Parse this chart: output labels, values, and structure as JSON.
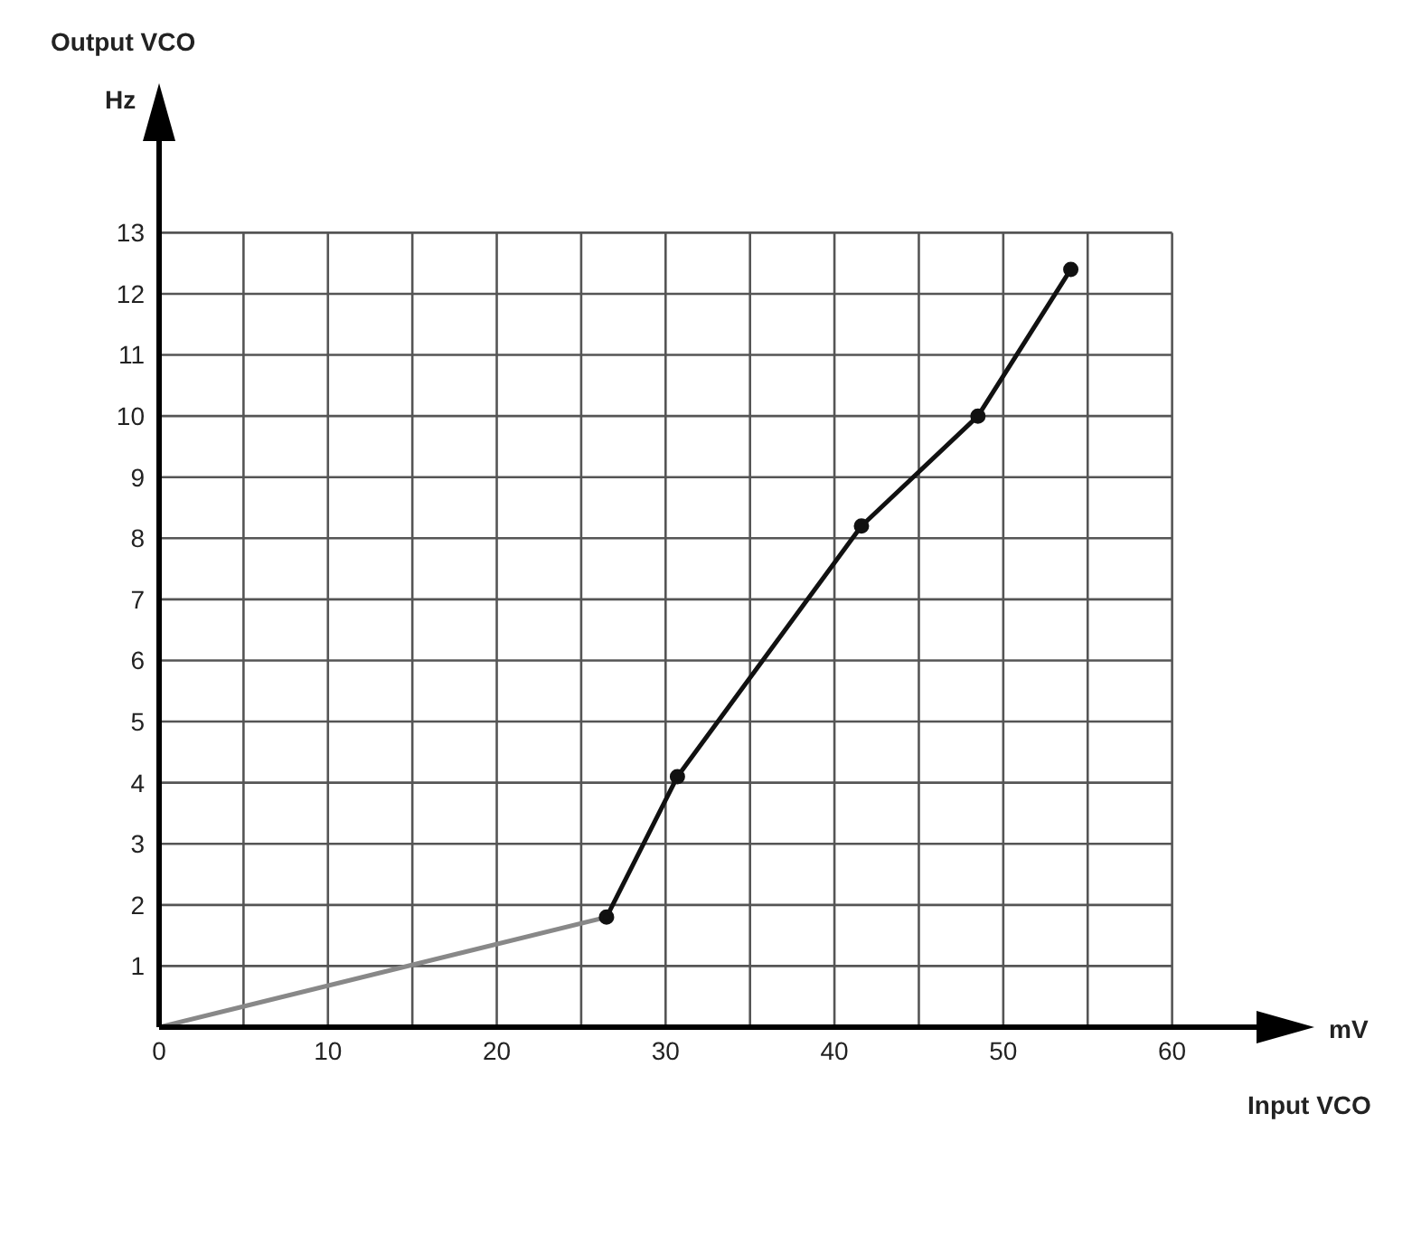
{
  "chart_data": {
    "type": "line",
    "xlabel": "Input VCO",
    "annotations": [
      "Output VCO",
      "Hz",
      "mV"
    ],
    "series": [
      {
        "color": "#888888",
        "marker": "none",
        "x": [
          0,
          26.5
        ],
        "values": [
          0,
          1.8
        ]
      },
      {
        "color": "#111111",
        "marker": "circle",
        "x": [
          26.5,
          30.7,
          41.6,
          48.5,
          54
        ],
        "values": [
          1.8,
          4.1,
          8.2,
          10,
          12.4
        ]
      }
    ],
    "xlim": [
      0,
      65
    ],
    "xticks": [
      0,
      {
        "value": 5,
        "label": null
      },
      10,
      {
        "value": 15,
        "label": null
      },
      20,
      {
        "value": 25,
        "label": null
      },
      30,
      {
        "value": 35,
        "label": null
      },
      40,
      {
        "value": 45,
        "label": null
      },
      50,
      {
        "value": 55,
        "label": null
      },
      60
    ],
    "ylim": [
      0,
      14.5
    ],
    "yticks": [
      {
        "value": 0,
        "label": null
      },
      1,
      2,
      3,
      4,
      5,
      6,
      7,
      8,
      9,
      10,
      11,
      12,
      13
    ],
    "grid": true,
    "legend": false,
    "line_style": "solid"
  }
}
